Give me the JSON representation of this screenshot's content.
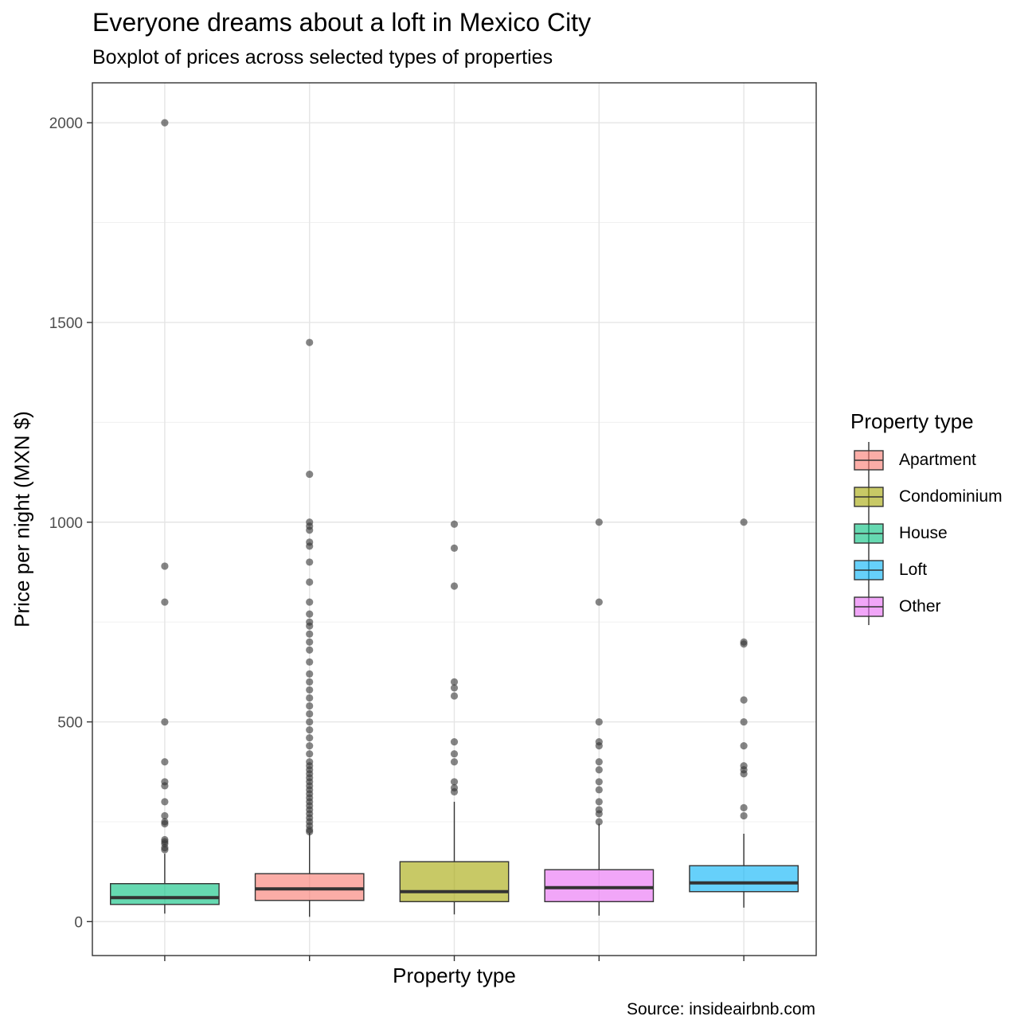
{
  "chart_data": {
    "type": "boxplot",
    "title": "Everyone dreams about a loft in Mexico City",
    "subtitle": "Boxplot of prices across selected types of properties",
    "xlabel": "Property type",
    "ylabel": "Price per night (MXN $)",
    "caption": "Source: insideairbnb.com",
    "ylim": [
      -85,
      2100
    ],
    "yticks": [
      0,
      500,
      1000,
      1500,
      2000
    ],
    "grid": true,
    "legend": {
      "title": "Property type",
      "position": "right",
      "entries": [
        "Apartment",
        "Condominium",
        "House",
        "Loft",
        "Other"
      ]
    },
    "series": [
      {
        "name": "House",
        "color": "#00BF7D",
        "min": 20,
        "q1": 43,
        "median": 60,
        "q3": 95,
        "max": 170,
        "outliers": [
          180,
          185,
          195,
          200,
          205,
          245,
          250,
          265,
          300,
          340,
          350,
          400,
          500,
          800,
          890,
          2000
        ]
      },
      {
        "name": "Apartment",
        "color": "#F8766D",
        "min": 12,
        "q1": 53,
        "median": 82,
        "q3": 120,
        "max": 222,
        "outliers": [
          225,
          230,
          240,
          250,
          260,
          270,
          280,
          290,
          300,
          310,
          320,
          330,
          340,
          350,
          360,
          370,
          380,
          390,
          400,
          420,
          440,
          460,
          480,
          500,
          520,
          540,
          560,
          580,
          600,
          620,
          650,
          680,
          700,
          720,
          740,
          750,
          770,
          800,
          850,
          900,
          940,
          950,
          980,
          990,
          1000,
          1120,
          1450
        ]
      },
      {
        "name": "Condominium",
        "color": "#A3A500",
        "min": 18,
        "q1": 50,
        "median": 75,
        "q3": 150,
        "max": 300,
        "outliers": [
          325,
          335,
          350,
          400,
          420,
          450,
          565,
          585,
          600,
          840,
          935,
          995
        ]
      },
      {
        "name": "Other",
        "color": "#E76BF3",
        "min": 15,
        "q1": 50,
        "median": 85,
        "q3": 130,
        "max": 245,
        "outliers": [
          250,
          270,
          280,
          300,
          330,
          350,
          380,
          400,
          440,
          450,
          500,
          800,
          1000
        ]
      },
      {
        "name": "Loft",
        "color": "#00B0F6",
        "min": 35,
        "q1": 75,
        "median": 97,
        "q3": 140,
        "max": 220,
        "outliers": [
          265,
          285,
          370,
          380,
          390,
          440,
          500,
          555,
          695,
          700,
          1000
        ]
      }
    ]
  }
}
